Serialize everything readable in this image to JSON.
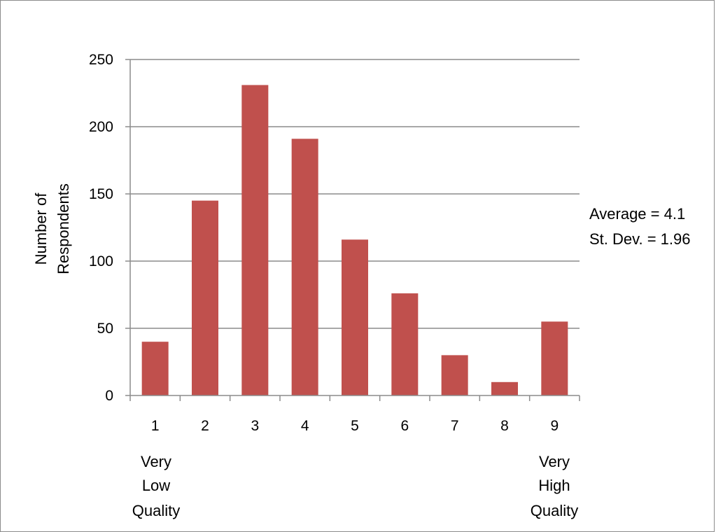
{
  "colors": {
    "bar": "#c0504d",
    "grid": "#8c8c8c",
    "axis": "#8c8c8c",
    "text": "#000000"
  },
  "chart_data": {
    "type": "bar",
    "categories": [
      "1",
      "2",
      "3",
      "4",
      "5",
      "6",
      "7",
      "8",
      "9"
    ],
    "values": [
      40,
      145,
      231,
      191,
      116,
      76,
      30,
      10,
      55
    ],
    "ylabel_lines": [
      "Number of",
      "Respondents"
    ],
    "xlabel": "",
    "ylim": [
      0,
      250
    ],
    "yticks": [
      "0",
      "50",
      "100",
      "150",
      "200",
      "250"
    ],
    "grid": true,
    "legend": "none",
    "annotations": {
      "average": "Average = 4.1",
      "stdev": "St. Dev. = 1.96"
    },
    "end_labels": {
      "low": [
        "Very",
        "Low",
        "Quality"
      ],
      "high": [
        "Very",
        "High",
        "Quality"
      ]
    }
  }
}
